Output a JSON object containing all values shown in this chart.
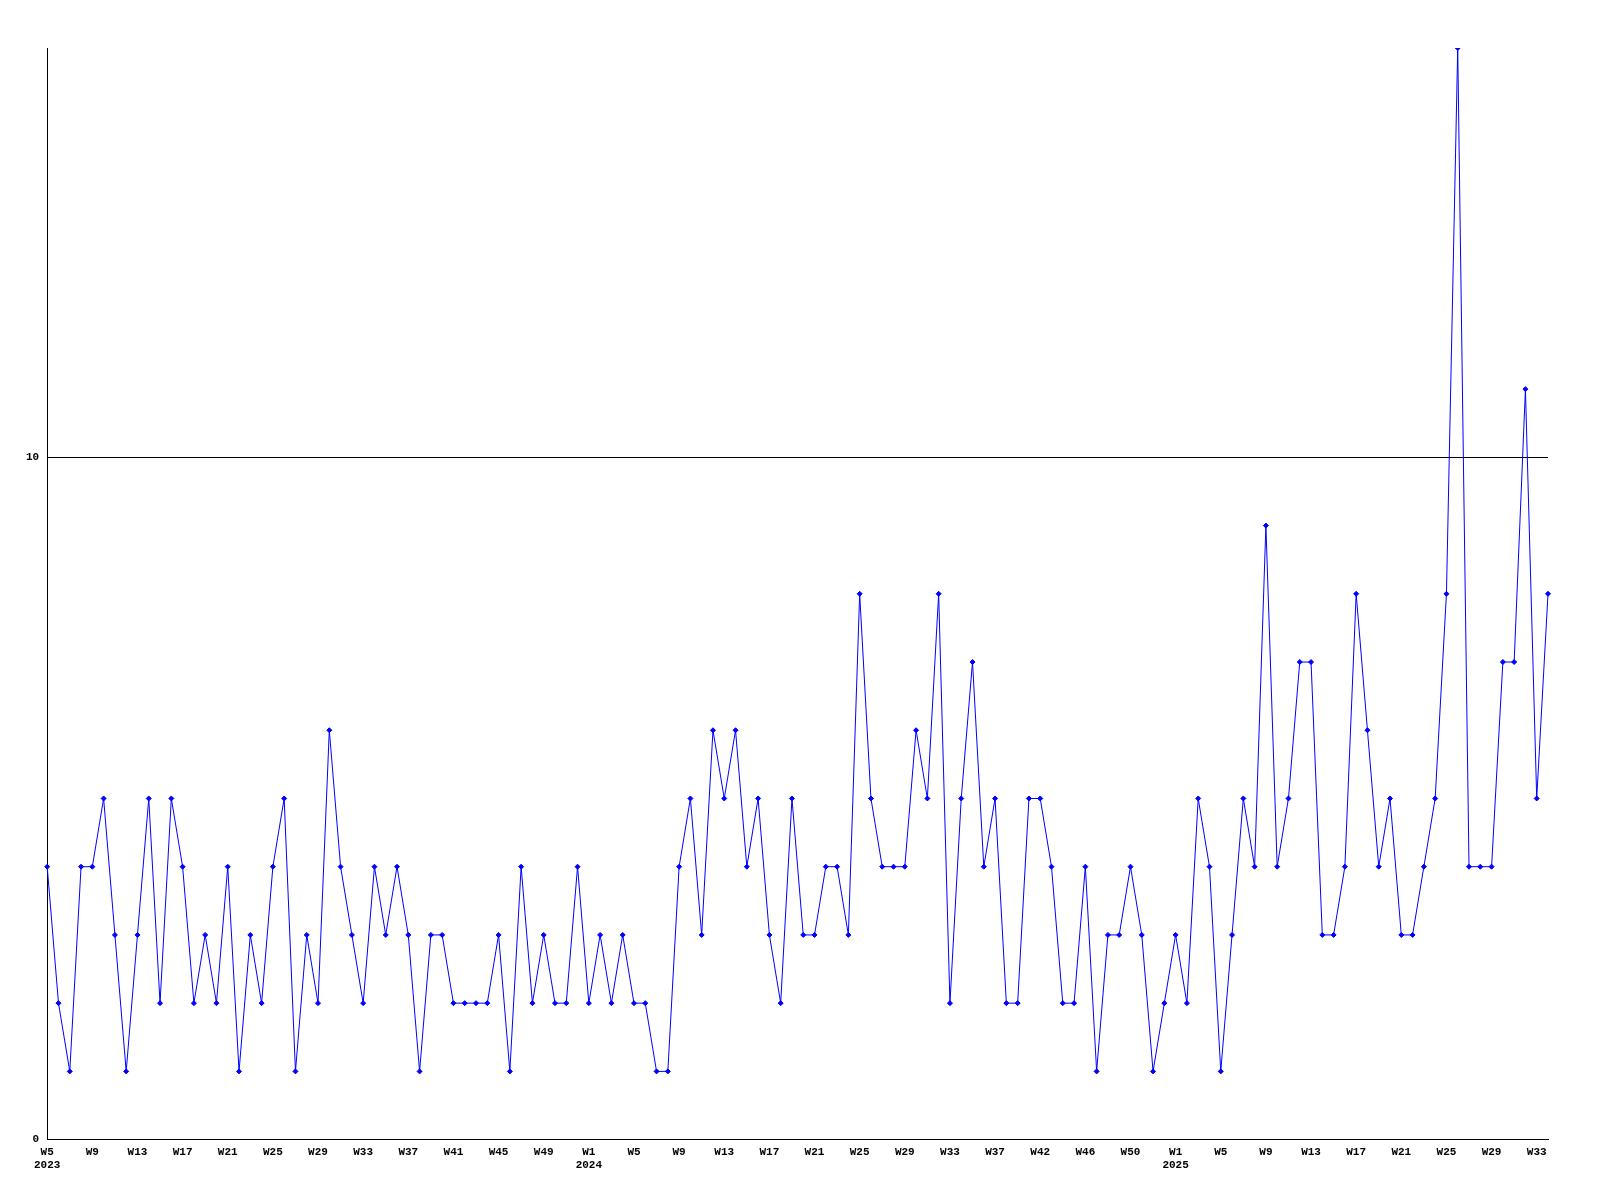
{
  "chart_data": {
    "type": "line",
    "categories": [
      "W5\n2023",
      null,
      null,
      null,
      "W9",
      null,
      null,
      null,
      "W13",
      null,
      null,
      null,
      "W17",
      null,
      null,
      null,
      "W21",
      null,
      null,
      null,
      "W25",
      null,
      null,
      null,
      "W29",
      null,
      null,
      null,
      "W33",
      null,
      null,
      null,
      "W37",
      null,
      null,
      null,
      "W41",
      null,
      null,
      null,
      "W45",
      null,
      null,
      null,
      "W49",
      null,
      null,
      null,
      "W1\n2024",
      null,
      null,
      null,
      "W5",
      null,
      null,
      null,
      "W9",
      null,
      null,
      null,
      "W13",
      null,
      null,
      null,
      "W17",
      null,
      null,
      null,
      "W21",
      null,
      null,
      null,
      "W25",
      null,
      null,
      null,
      "W29",
      null,
      null,
      null,
      "W33",
      null,
      null,
      null,
      "W37",
      null,
      null,
      null,
      "W42",
      null,
      null,
      null,
      "W46",
      null,
      null,
      null,
      "W50",
      null,
      null,
      null,
      "W1\n2025",
      null,
      null,
      null,
      "W5",
      null,
      null,
      null,
      "W9",
      null,
      null,
      null,
      "W13",
      null,
      null,
      null,
      "W17",
      null,
      null,
      null,
      "W21",
      null,
      null,
      null,
      "W25",
      null,
      null,
      null,
      "W29",
      null,
      null,
      null,
      "W33",
      null
    ],
    "series": [
      {
        "color": "#0000ff",
        "values": [
          4,
          2,
          1,
          4,
          4,
          5,
          3,
          1,
          3,
          5,
          2,
          5,
          4,
          2,
          3,
          2,
          4,
          1,
          3,
          2,
          4,
          5,
          1,
          3,
          2,
          6,
          4,
          3,
          2,
          4,
          3,
          4,
          3,
          1,
          3,
          3,
          2,
          2,
          2,
          2,
          3,
          1,
          4,
          2,
          3,
          2,
          2,
          4,
          2,
          3,
          2,
          3,
          2,
          2,
          1,
          1,
          4,
          5,
          3,
          6,
          5,
          6,
          4,
          5,
          3,
          2,
          5,
          3,
          3,
          4,
          4,
          3,
          8,
          5,
          4,
          4,
          4,
          6,
          5,
          8,
          2,
          5,
          7,
          4,
          5,
          2,
          2,
          5,
          5,
          4,
          2,
          2,
          4,
          1,
          3,
          3,
          4,
          3,
          1,
          2,
          3,
          2,
          5,
          4,
          1,
          3,
          5,
          4,
          9,
          4,
          5,
          7,
          7,
          3,
          3,
          4,
          8,
          6,
          4,
          5,
          3,
          3,
          4,
          5,
          8,
          16,
          4,
          4,
          4,
          7,
          7,
          11,
          5,
          8
        ]
      }
    ],
    "ylim": [
      0,
      16
    ],
    "yticks": [
      0,
      10
    ],
    "grid": "y",
    "marker": "diamond",
    "line_style": "solid",
    "legend": false
  }
}
